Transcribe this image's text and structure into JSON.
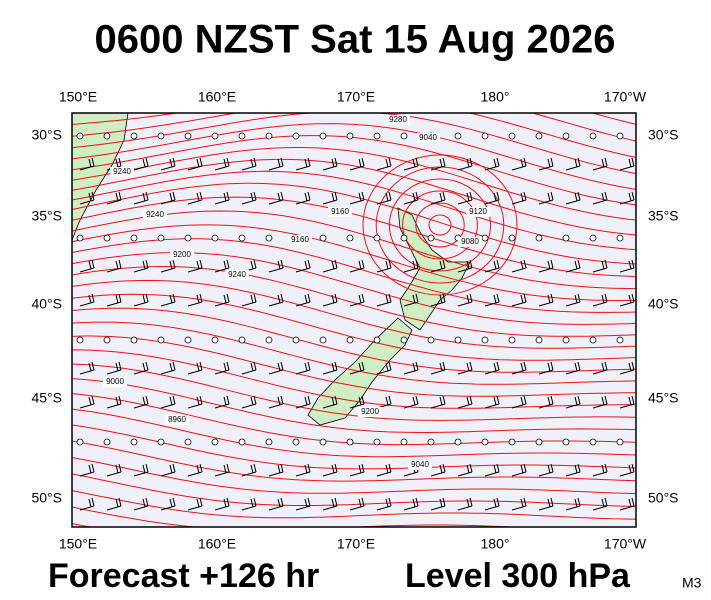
{
  "header": {
    "title": "0600 NZST Sat 15 Aug 2026"
  },
  "map": {
    "lon_labels": [
      "150°E",
      "160°E",
      "170°E",
      "180°",
      "170°W"
    ],
    "lat_labels": [
      "30°S",
      "35°S",
      "40°S",
      "45°S",
      "50°S"
    ],
    "contour_labels": [
      "9280",
      "9240",
      "9240",
      "9200",
      "9160",
      "9120",
      "9080",
      "9040",
      "9040",
      "9000",
      "8960",
      "9160",
      "9240",
      "9200"
    ]
  },
  "footer": {
    "forecast": "Forecast +126 hr",
    "level": "Level 300 hPa",
    "model": "M3"
  }
}
